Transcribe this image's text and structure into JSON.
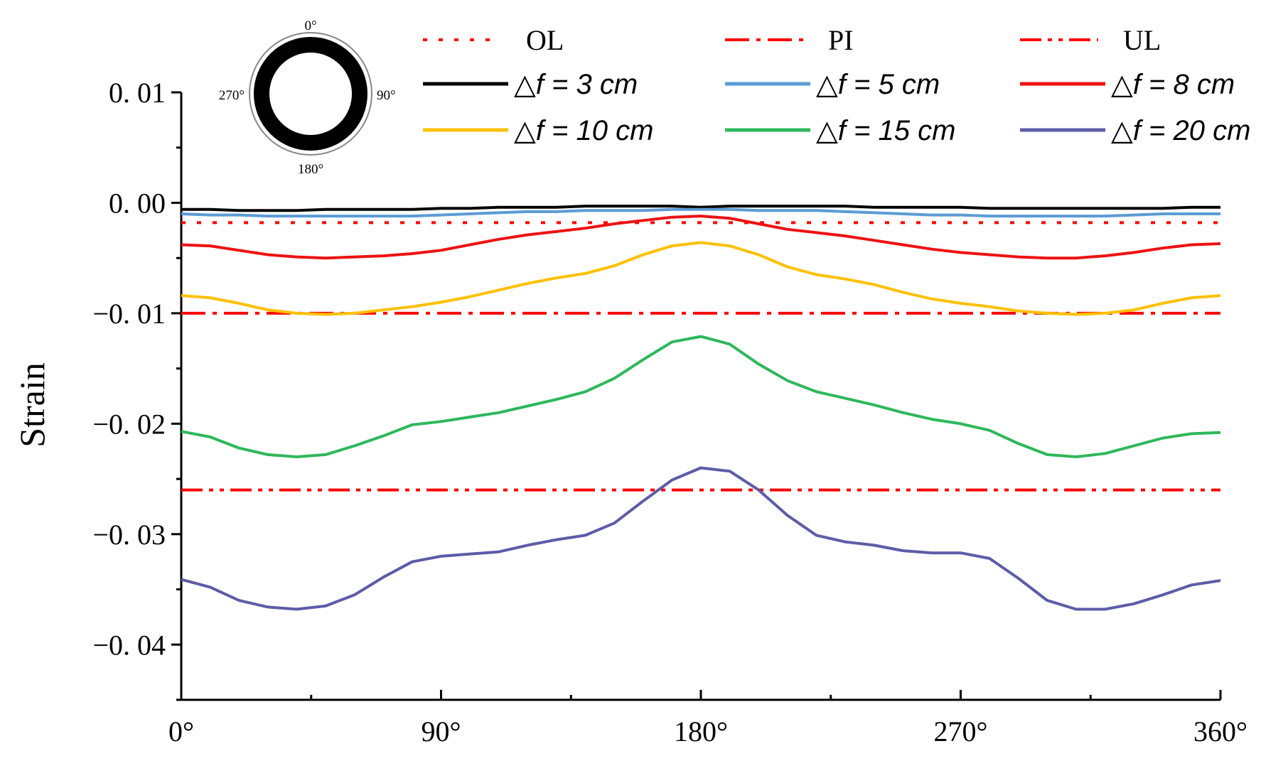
{
  "chart_data": {
    "type": "line",
    "title": "",
    "xlabel": "",
    "ylabel": "Strain",
    "xlim": [
      0,
      360
    ],
    "ylim": [
      -0.045,
      0.01
    ],
    "grid": false,
    "legend_position": "top",
    "x_ticks": [
      {
        "value": 0,
        "label": "0°"
      },
      {
        "value": 90,
        "label": "90°"
      },
      {
        "value": 180,
        "label": "180°"
      },
      {
        "value": 270,
        "label": "270°"
      },
      {
        "value": 360,
        "label": "360°"
      }
    ],
    "y_ticks": [
      {
        "value": 0.01,
        "label": "0. 01"
      },
      {
        "value": 0.0,
        "label": "0. 00"
      },
      {
        "value": -0.01,
        "label": "−0. 01"
      },
      {
        "value": -0.02,
        "label": "−0. 02"
      },
      {
        "value": -0.03,
        "label": "−0. 03"
      },
      {
        "value": -0.04,
        "label": "−0. 04"
      }
    ],
    "reference_lines": [
      {
        "name": "OL",
        "value": -0.0018,
        "color": "#ff0000",
        "style": "dotted"
      },
      {
        "name": "PI",
        "value": -0.01,
        "color": "#ff0000",
        "style": "dashdot"
      },
      {
        "name": "UL",
        "value": -0.026,
        "color": "#ff0000",
        "style": "dashdotdot"
      }
    ],
    "x": [
      0,
      10,
      20,
      30,
      40,
      50,
      60,
      70,
      80,
      90,
      100,
      110,
      120,
      130,
      140,
      150,
      160,
      170,
      180,
      190,
      200,
      210,
      220,
      230,
      240,
      250,
      260,
      270,
      280,
      290,
      300,
      310,
      320,
      330,
      340,
      350,
      360
    ],
    "series": [
      {
        "name": "△f = 3 cm",
        "color": "#000000",
        "values": [
          -0.0006,
          -0.0006,
          -0.0007,
          -0.0007,
          -0.0007,
          -0.0006,
          -0.0006,
          -0.0006,
          -0.0006,
          -0.0005,
          -0.0005,
          -0.0004,
          -0.0004,
          -0.0004,
          -0.0003,
          -0.0003,
          -0.0003,
          -0.0003,
          -0.0004,
          -0.0003,
          -0.0003,
          -0.0003,
          -0.0003,
          -0.0003,
          -0.0004,
          -0.0004,
          -0.0004,
          -0.0004,
          -0.0005,
          -0.0005,
          -0.0005,
          -0.0005,
          -0.0005,
          -0.0005,
          -0.0005,
          -0.0004,
          -0.0004
        ]
      },
      {
        "name": "△f = 5 cm",
        "color": "#5b9bd5",
        "values": [
          -0.001,
          -0.0011,
          -0.0011,
          -0.0012,
          -0.0012,
          -0.0012,
          -0.0012,
          -0.0012,
          -0.0012,
          -0.0011,
          -0.001,
          -0.0009,
          -0.0008,
          -0.0008,
          -0.0007,
          -0.0007,
          -0.0007,
          -0.0006,
          -0.0006,
          -0.0006,
          -0.0007,
          -0.0007,
          -0.0007,
          -0.0008,
          -0.0009,
          -0.001,
          -0.0011,
          -0.0011,
          -0.0012,
          -0.0012,
          -0.0012,
          -0.0012,
          -0.0012,
          -0.0011,
          -0.001,
          -0.001,
          -0.001
        ]
      },
      {
        "name": "△f = 8 cm",
        "color": "#ee1111",
        "values": [
          -0.0038,
          -0.0039,
          -0.0043,
          -0.0047,
          -0.0049,
          -0.005,
          -0.0049,
          -0.0048,
          -0.0046,
          -0.0043,
          -0.0038,
          -0.0033,
          -0.0029,
          -0.0026,
          -0.0023,
          -0.0019,
          -0.0016,
          -0.0013,
          -0.0012,
          -0.0014,
          -0.0019,
          -0.0024,
          -0.0027,
          -0.003,
          -0.0034,
          -0.0038,
          -0.0042,
          -0.0045,
          -0.0047,
          -0.0049,
          -0.005,
          -0.005,
          -0.0048,
          -0.0045,
          -0.0041,
          -0.0038,
          -0.0037
        ]
      },
      {
        "name": "△f = 10 cm",
        "color": "#ffc000",
        "values": [
          -0.0084,
          -0.0086,
          -0.0091,
          -0.0097,
          -0.01,
          -0.0101,
          -0.01,
          -0.0097,
          -0.0094,
          -0.009,
          -0.0085,
          -0.0079,
          -0.0073,
          -0.0068,
          -0.0064,
          -0.0057,
          -0.0047,
          -0.0039,
          -0.0036,
          -0.0039,
          -0.0047,
          -0.0058,
          -0.0065,
          -0.0069,
          -0.0074,
          -0.0081,
          -0.0087,
          -0.0091,
          -0.0094,
          -0.0098,
          -0.01,
          -0.0101,
          -0.01,
          -0.0097,
          -0.0091,
          -0.0086,
          -0.0084
        ]
      },
      {
        "name": "△f = 15 cm",
        "color": "#2db85a",
        "values": [
          -0.0207,
          -0.0212,
          -0.0222,
          -0.0228,
          -0.023,
          -0.0228,
          -0.022,
          -0.0211,
          -0.0201,
          -0.0198,
          -0.0194,
          -0.019,
          -0.0184,
          -0.0178,
          -0.0171,
          -0.0159,
          -0.0142,
          -0.0126,
          -0.0121,
          -0.0128,
          -0.0146,
          -0.0161,
          -0.0171,
          -0.0177,
          -0.0183,
          -0.019,
          -0.0196,
          -0.02,
          -0.0206,
          -0.0218,
          -0.0228,
          -0.023,
          -0.0227,
          -0.022,
          -0.0213,
          -0.0209,
          -0.0208
        ]
      },
      {
        "name": "△f = 20 cm",
        "color": "#5c5ca8",
        "values": [
          -0.0341,
          -0.0348,
          -0.036,
          -0.0366,
          -0.0368,
          -0.0365,
          -0.0355,
          -0.0339,
          -0.0325,
          -0.032,
          -0.0318,
          -0.0316,
          -0.031,
          -0.0305,
          -0.0301,
          -0.029,
          -0.027,
          -0.0251,
          -0.024,
          -0.0243,
          -0.026,
          -0.0283,
          -0.0301,
          -0.0307,
          -0.031,
          -0.0315,
          -0.0317,
          -0.0317,
          -0.0322,
          -0.034,
          -0.036,
          -0.0368,
          -0.0368,
          -0.0363,
          -0.0355,
          -0.0346,
          -0.0342
        ]
      }
    ],
    "inset": {
      "labels": {
        "top": "0°",
        "right": "90°",
        "bottom": "180°",
        "left": "270°"
      }
    }
  }
}
